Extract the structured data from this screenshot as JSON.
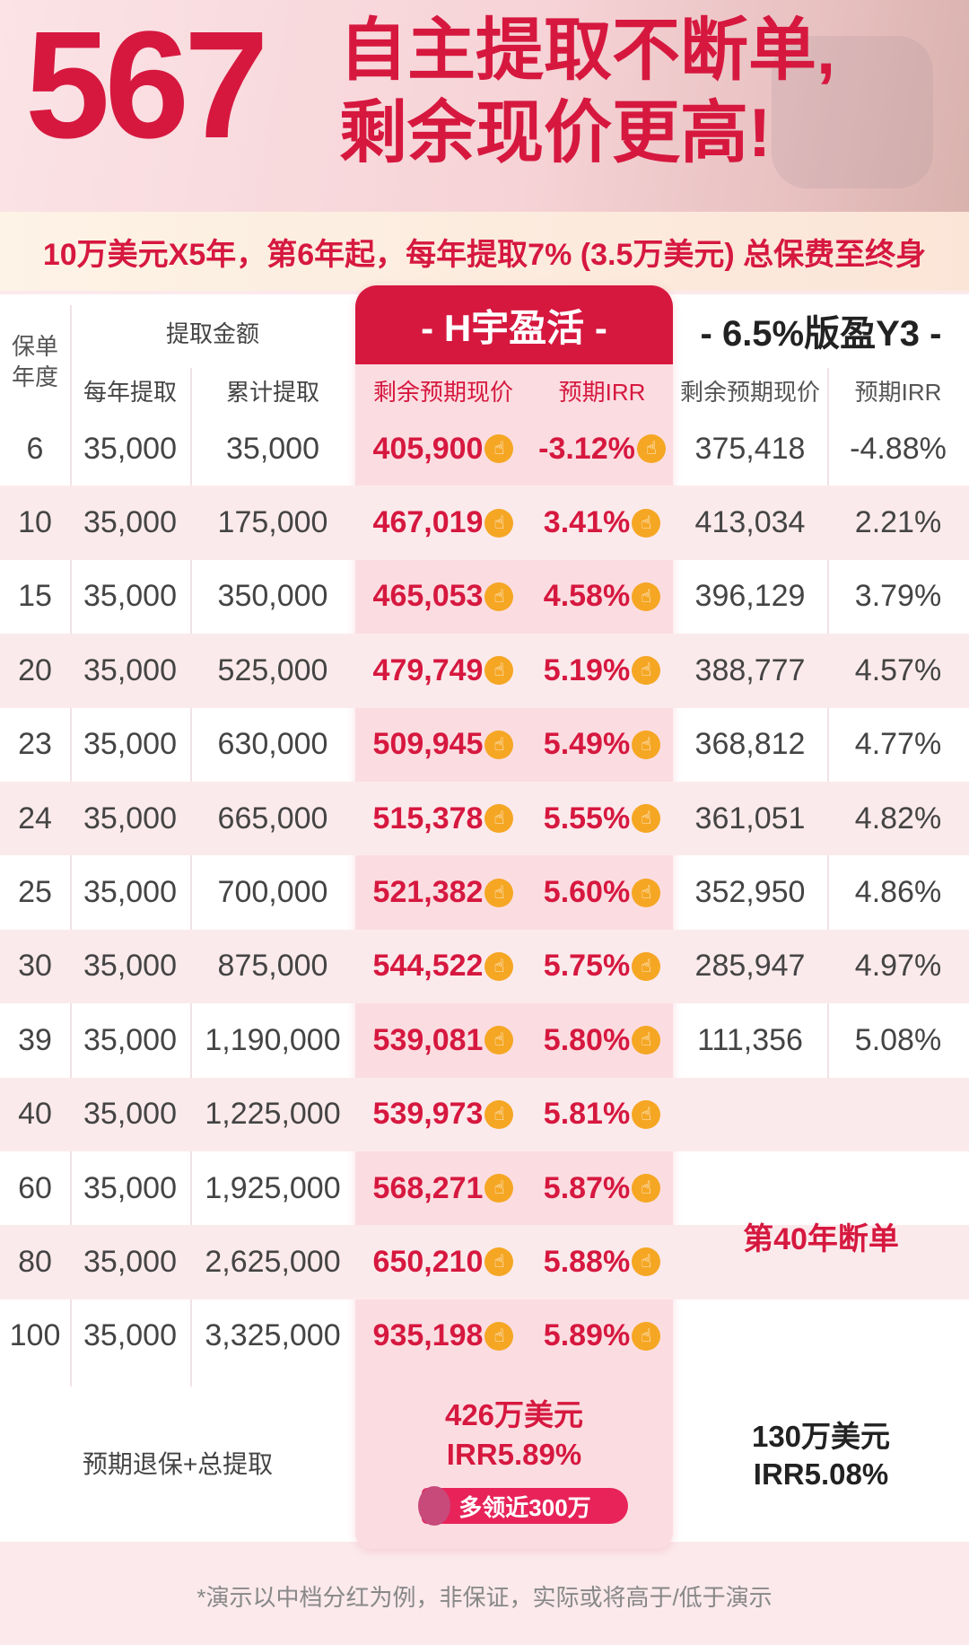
{
  "hero": {
    "number": "567",
    "line1": "自主提取不断单,",
    "line2": "剩余现价更高!"
  },
  "subtitle": "10万美元X5年，第6年起，每年提取7% (3.5万美元) 总保费至终身",
  "table": {
    "col_policy_year": "保单\n年度",
    "group_withdraw": "提取金额",
    "col_annual": "每年提取",
    "col_cumulative": "累计提取",
    "product_a": "- H宇盈活 -",
    "product_b": "- 6.5%版盈Y3 -",
    "col_a_value": "剩余预期现价",
    "col_a_irr": "预期IRR",
    "col_b_value": "剩余预期现价",
    "col_b_irr": "预期IRR",
    "thumb_icon": "thumbs-up-icon",
    "rows": [
      {
        "year": "6",
        "annual": "35,000",
        "cum": "35,000",
        "a_val": "405,900",
        "a_irr": "-3.12%",
        "b_val": "375,418",
        "b_irr": "-4.88%"
      },
      {
        "year": "10",
        "annual": "35,000",
        "cum": "175,000",
        "a_val": "467,019",
        "a_irr": "3.41%",
        "b_val": "413,034",
        "b_irr": "2.21%"
      },
      {
        "year": "15",
        "annual": "35,000",
        "cum": "350,000",
        "a_val": "465,053",
        "a_irr": "4.58%",
        "b_val": "396,129",
        "b_irr": "3.79%"
      },
      {
        "year": "20",
        "annual": "35,000",
        "cum": "525,000",
        "a_val": "479,749",
        "a_irr": "5.19%",
        "b_val": "388,777",
        "b_irr": "4.57%"
      },
      {
        "year": "23",
        "annual": "35,000",
        "cum": "630,000",
        "a_val": "509,945",
        "a_irr": "5.49%",
        "b_val": "368,812",
        "b_irr": "4.77%"
      },
      {
        "year": "24",
        "annual": "35,000",
        "cum": "665,000",
        "a_val": "515,378",
        "a_irr": "5.55%",
        "b_val": "361,051",
        "b_irr": "4.82%"
      },
      {
        "year": "25",
        "annual": "35,000",
        "cum": "700,000",
        "a_val": "521,382",
        "a_irr": "5.60%",
        "b_val": "352,950",
        "b_irr": "4.86%"
      },
      {
        "year": "30",
        "annual": "35,000",
        "cum": "875,000",
        "a_val": "544,522",
        "a_irr": "5.75%",
        "b_val": "285,947",
        "b_irr": "4.97%"
      },
      {
        "year": "39",
        "annual": "35,000",
        "cum": "1,190,000",
        "a_val": "539,081",
        "a_irr": "5.80%",
        "b_val": "111,356",
        "b_irr": "5.08%"
      },
      {
        "year": "40",
        "annual": "35,000",
        "cum": "1,225,000",
        "a_val": "539,973",
        "a_irr": "5.81%",
        "b_val": "",
        "b_irr": ""
      },
      {
        "year": "60",
        "annual": "35,000",
        "cum": "1,925,000",
        "a_val": "568,271",
        "a_irr": "5.87%",
        "b_val": "",
        "b_irr": ""
      },
      {
        "year": "80",
        "annual": "35,000",
        "cum": "2,625,000",
        "a_val": "650,210",
        "a_irr": "5.88%",
        "b_val": "",
        "b_irr": ""
      },
      {
        "year": "100",
        "annual": "35,000",
        "cum": "3,325,000",
        "a_val": "935,198",
        "a_irr": "5.89%",
        "b_val": "",
        "b_irr": ""
      }
    ],
    "b_break_note": "第40年断单"
  },
  "summary": {
    "label": "预期退保+总提取",
    "a_amount": "426万美元",
    "a_irr": "IRR5.89%",
    "a_badge": "多领近300万",
    "b_amount": "130万美元",
    "b_irr": "IRR5.08%"
  },
  "footnote": "*演示以中档分红为例，非保证，实际或将高于/低于演示",
  "colors": {
    "brand": "#d6183f",
    "highlight_bg": "#fbdde1",
    "thumb": "#f5a623"
  }
}
